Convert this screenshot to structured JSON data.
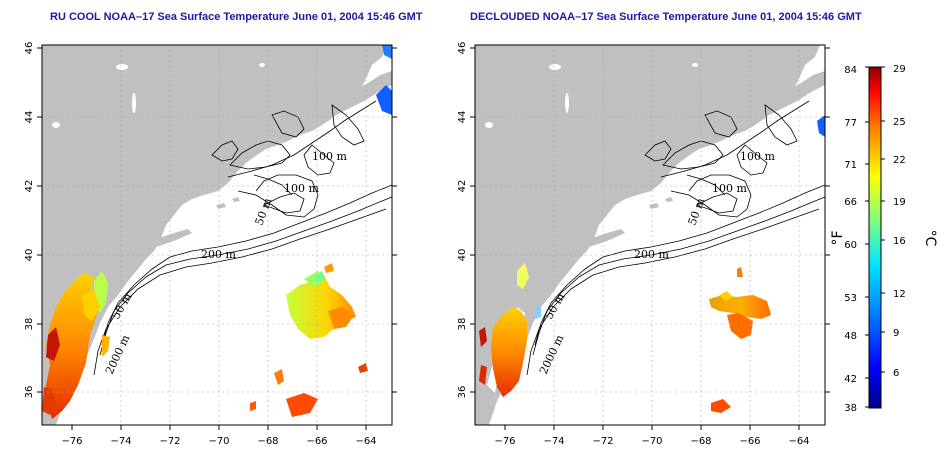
{
  "maps": [
    {
      "title": "RU COOL NOAA–17 Sea Surface Temperature June 01, 2004 15:46 GMT",
      "contour_labels": [
        "100 m",
        "100 m",
        "50 m",
        "200 m",
        "50 m",
        "2000 m"
      ]
    },
    {
      "title": "DECLOUDED NOAA–17 Sea Surface Temperature June 01, 2004 15:46 GMT",
      "contour_labels": [
        "100 m",
        "100 m",
        "50 m",
        "200 m",
        "50 m",
        "2000 m"
      ]
    }
  ],
  "axes": {
    "longitude_ticks": [
      "−76",
      "−74",
      "−72",
      "−70",
      "−68",
      "−66",
      "−64"
    ],
    "latitude_ticks": [
      "46",
      "44",
      "42",
      "40",
      "38",
      "36"
    ]
  },
  "colorbar": {
    "fahrenheit_label": "°F",
    "celsius_label": "°C",
    "fahrenheit_ticks": [
      "84",
      "77",
      "71",
      "66",
      "60",
      "53",
      "48",
      "42",
      "38"
    ],
    "celsius_ticks": [
      "29",
      "25",
      "22",
      "19",
      "16",
      "12",
      "9",
      "6"
    ]
  },
  "colors": {
    "title": "#1a1aa6",
    "land": "#c0c0c0",
    "ocean": "#ffffff",
    "scale": [
      "#00008b",
      "#0000ff",
      "#0080ff",
      "#00e5ff",
      "#7fff7f",
      "#ffff00",
      "#ff8000",
      "#ff0000",
      "#8b0000"
    ]
  }
}
